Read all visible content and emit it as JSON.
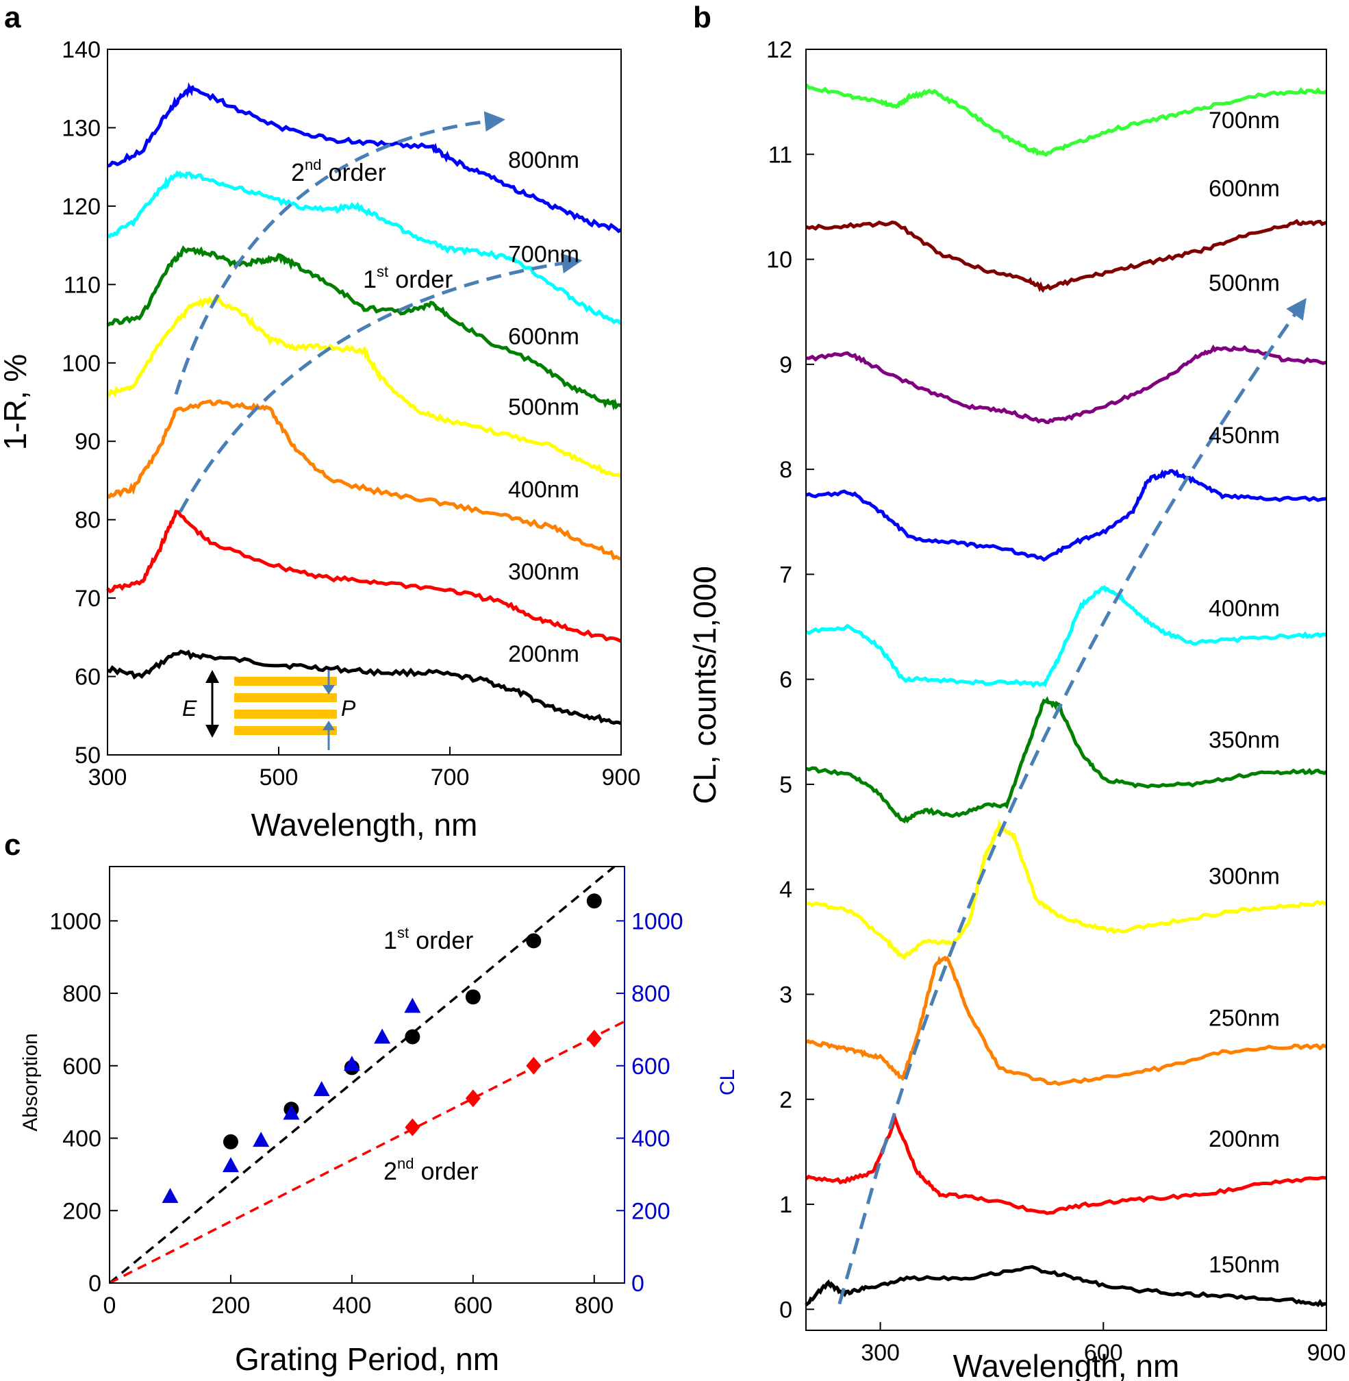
{
  "panel_a": {
    "letter": "a",
    "chart_data": {
      "type": "line",
      "xlabel": "Wavelength, nm",
      "ylabel": "1-R, %",
      "xlim": [
        300,
        900
      ],
      "ylim": [
        50,
        140
      ],
      "xticks": [
        300,
        500,
        700,
        900
      ],
      "yticks": [
        50,
        60,
        70,
        80,
        90,
        100,
        110,
        120,
        130,
        140
      ],
      "annotations": {
        "first_order": {
          "text": "order",
          "sup": "st",
          "num": "1"
        },
        "second_order": {
          "text": "order",
          "sup": "nd",
          "num": "2"
        },
        "inset_E": "E",
        "inset_P": "P"
      },
      "series": [
        {
          "name": "200nm",
          "color": "#000000",
          "x": [
            300,
            340,
            380,
            420,
            500,
            560,
            620,
            680,
            740,
            780,
            820,
            860,
            900
          ],
          "y": [
            61,
            60,
            63,
            62.5,
            61.5,
            61,
            60.5,
            60.5,
            59.5,
            58,
            56,
            55,
            54
          ]
        },
        {
          "name": "300nm",
          "color": "#ff0000",
          "x": [
            300,
            340,
            360,
            380,
            420,
            500,
            560,
            620,
            700,
            760,
            800,
            840,
            900
          ],
          "y": [
            71,
            72,
            76,
            81,
            77,
            74,
            72.5,
            72,
            71,
            69.5,
            67.5,
            66,
            64.5
          ]
        },
        {
          "name": "400nm",
          "color": "#ff8000",
          "x": [
            300,
            330,
            360,
            380,
            420,
            460,
            490,
            520,
            560,
            620,
            700,
            760,
            820,
            860,
            900
          ],
          "y": [
            83,
            84,
            89,
            94,
            95,
            94.5,
            94,
            89,
            85,
            83.5,
            82,
            80.5,
            79,
            77,
            75
          ]
        },
        {
          "name": "500nm",
          "color": "#ffff00",
          "x": [
            300,
            330,
            370,
            400,
            430,
            460,
            490,
            520,
            560,
            600,
            620,
            660,
            700,
            760,
            820,
            860,
            900
          ],
          "y": [
            96,
            97,
            104,
            107.5,
            108,
            106,
            103,
            102,
            102,
            101.5,
            98,
            94,
            92.5,
            91,
            89.5,
            87,
            85.5
          ]
        },
        {
          "name": "600nm",
          "color": "#008000",
          "x": [
            300,
            340,
            370,
            390,
            420,
            450,
            480,
            500,
            520,
            560,
            600,
            650,
            680,
            700,
            740,
            800,
            840,
            880,
            900
          ],
          "y": [
            105,
            106,
            112,
            114.5,
            114,
            112.5,
            113,
            113.5,
            112.5,
            110,
            107,
            106.5,
            107.5,
            106,
            103,
            100,
            97,
            95,
            94.5
          ]
        },
        {
          "name": "700nm",
          "color": "#00ffff",
          "x": [
            300,
            330,
            360,
            380,
            400,
            440,
            480,
            520,
            560,
            590,
            620,
            660,
            700,
            740,
            780,
            820,
            860,
            900
          ],
          "y": [
            116,
            118,
            122,
            124,
            124,
            122.5,
            121.5,
            120,
            119.5,
            120,
            118.5,
            116,
            114.5,
            114,
            113,
            110,
            107,
            105
          ]
        },
        {
          "name": "800nm",
          "color": "#0000ff",
          "x": [
            300,
            340,
            370,
            390,
            400,
            440,
            500,
            560,
            620,
            680,
            700,
            740,
            780,
            820,
            860,
            900
          ],
          "y": [
            125,
            127,
            132,
            134.5,
            135,
            133,
            130,
            128.5,
            128,
            127.5,
            126,
            124,
            122,
            120,
            118,
            117
          ]
        }
      ]
    }
  },
  "panel_b": {
    "letter": "b",
    "chart_data": {
      "type": "line",
      "xlabel": "Wavelength, nm",
      "ylabel": "CL, counts/1,000",
      "xlim": [
        200,
        900
      ],
      "ylim": [
        -0.2,
        12
      ],
      "xticks": [
        300,
        600,
        900
      ],
      "yticks": [
        0,
        1,
        2,
        3,
        4,
        5,
        6,
        7,
        8,
        9,
        10,
        11,
        12
      ],
      "series": [
        {
          "name": "150nm",
          "label_y": 0.35,
          "color": "#000000",
          "x": [
            200,
            230,
            250,
            280,
            340,
            420,
            500,
            560,
            620,
            700,
            780,
            860,
            900
          ],
          "y": [
            0.05,
            0.25,
            0.15,
            0.2,
            0.3,
            0.3,
            0.4,
            0.3,
            0.2,
            0.15,
            0.12,
            0.08,
            0.05
          ]
        },
        {
          "name": "200nm",
          "label_y": 1.55,
          "color": "#ff0000",
          "x": [
            200,
            250,
            290,
            320,
            350,
            380,
            440,
            520,
            580,
            660,
            740,
            820,
            900
          ],
          "y": [
            1.25,
            1.22,
            1.3,
            1.8,
            1.3,
            1.1,
            1.05,
            0.92,
            1.0,
            1.05,
            1.1,
            1.2,
            1.25
          ]
        },
        {
          "name": "250nm",
          "label_y": 2.7,
          "color": "#ff8000",
          "x": [
            200,
            240,
            270,
            300,
            330,
            350,
            375,
            390,
            420,
            460,
            530,
            600,
            680,
            760,
            840,
            900
          ],
          "y": [
            2.55,
            2.5,
            2.45,
            2.4,
            2.2,
            2.6,
            3.3,
            3.35,
            2.8,
            2.3,
            2.15,
            2.2,
            2.3,
            2.45,
            2.5,
            2.5
          ]
        },
        {
          "name": "300nm",
          "label_y": 4.05,
          "color": "#ffff00",
          "x": [
            200,
            260,
            310,
            330,
            360,
            400,
            420,
            440,
            460,
            480,
            510,
            540,
            580,
            620,
            700,
            780,
            860,
            900
          ],
          "y": [
            3.87,
            3.8,
            3.5,
            3.35,
            3.5,
            3.5,
            3.7,
            4.3,
            4.6,
            4.5,
            3.9,
            3.75,
            3.65,
            3.6,
            3.7,
            3.8,
            3.85,
            3.87
          ]
        },
        {
          "name": "350nm",
          "label_y": 5.35,
          "color": "#008000",
          "x": [
            200,
            260,
            300,
            330,
            360,
            400,
            440,
            470,
            500,
            520,
            540,
            570,
            600,
            650,
            720,
            800,
            860,
            900
          ],
          "y": [
            5.15,
            5.1,
            4.9,
            4.65,
            4.75,
            4.7,
            4.8,
            4.8,
            5.4,
            5.8,
            5.75,
            5.3,
            5.05,
            4.98,
            5.0,
            5.1,
            5.12,
            5.12
          ]
        },
        {
          "name": "400nm",
          "label_y": 6.6,
          "color": "#00ffff",
          "x": [
            200,
            260,
            300,
            330,
            360,
            420,
            480,
            520,
            540,
            570,
            600,
            620,
            650,
            680,
            720,
            780,
            860,
            900
          ],
          "y": [
            6.45,
            6.5,
            6.3,
            6.0,
            6.0,
            5.97,
            5.97,
            5.95,
            6.2,
            6.7,
            6.88,
            6.8,
            6.6,
            6.45,
            6.35,
            6.38,
            6.42,
            6.42
          ]
        },
        {
          "name": "450nm",
          "label_y": 8.25,
          "color": "#0000ff",
          "x": [
            200,
            260,
            300,
            340,
            400,
            460,
            520,
            560,
            600,
            640,
            660,
            690,
            720,
            760,
            820,
            900
          ],
          "y": [
            7.75,
            7.78,
            7.6,
            7.35,
            7.3,
            7.25,
            7.15,
            7.3,
            7.4,
            7.6,
            7.9,
            7.98,
            7.9,
            7.75,
            7.72,
            7.72
          ]
        },
        {
          "name": "500nm",
          "label_y": 9.7,
          "color": "#800080",
          "x": [
            200,
            260,
            300,
            360,
            420,
            470,
            520,
            560,
            620,
            680,
            720,
            750,
            790,
            840,
            900
          ],
          "y": [
            9.05,
            9.1,
            8.95,
            8.75,
            8.6,
            8.55,
            8.45,
            8.5,
            8.65,
            8.85,
            9.05,
            9.15,
            9.15,
            9.05,
            9.02
          ]
        },
        {
          "name": "600nm",
          "label_y": 10.6,
          "color": "#800000",
          "x": [
            200,
            260,
            320,
            380,
            440,
            500,
            520,
            560,
            620,
            680,
            740,
            800,
            860,
            900
          ],
          "y": [
            10.3,
            10.32,
            10.35,
            10.05,
            9.9,
            9.8,
            9.72,
            9.8,
            9.9,
            10.0,
            10.1,
            10.25,
            10.35,
            10.35
          ]
        },
        {
          "name": "700nm",
          "label_y": 11.25,
          "color": "#33ff33",
          "x": [
            200,
            260,
            300,
            320,
            340,
            370,
            410,
            460,
            500,
            520,
            560,
            620,
            680,
            740,
            800,
            860,
            900
          ],
          "y": [
            11.65,
            11.55,
            11.5,
            11.45,
            11.55,
            11.6,
            11.45,
            11.2,
            11.05,
            11.0,
            11.1,
            11.25,
            11.35,
            11.45,
            11.55,
            11.6,
            11.6
          ]
        }
      ]
    }
  },
  "panel_c": {
    "letter": "c",
    "chart_data": {
      "type": "scatter",
      "xlabel": "Grating Period, nm",
      "ylabel": "Absorption",
      "y2label": "CL",
      "xlim": [
        0,
        850
      ],
      "ylim": [
        0,
        1150
      ],
      "xticks": [
        0,
        200,
        400,
        600,
        800
      ],
      "yticks": [
        0,
        200,
        400,
        600,
        800,
        1000
      ],
      "y2ticks": [
        0,
        200,
        400,
        600,
        800,
        1000
      ],
      "annotations": {
        "first_order": {
          "num": "1",
          "sup": "st",
          "text": "order"
        },
        "second_order": {
          "num": "2",
          "sup": "nd",
          "text": "order"
        }
      },
      "series": [
        {
          "marker": "circle",
          "color": "#000000",
          "x": [
            200,
            300,
            400,
            500,
            600,
            700,
            800
          ],
          "y": [
            390,
            480,
            595,
            680,
            790,
            945,
            1055
          ]
        },
        {
          "marker": "triangle",
          "color": "#0000dd",
          "x": [
            100,
            200,
            250,
            300,
            350,
            400,
            450,
            500
          ],
          "y": [
            240,
            325,
            395,
            470,
            535,
            605,
            680,
            765
          ]
        },
        {
          "marker": "diamond",
          "color": "#ff0000",
          "x": [
            500,
            600,
            700,
            800
          ],
          "y": [
            430,
            510,
            600,
            675
          ]
        }
      ],
      "fits": [
        {
          "color": "#000000",
          "slope": 1.38
        },
        {
          "color": "#ff0000",
          "slope": 0.85
        }
      ]
    }
  }
}
